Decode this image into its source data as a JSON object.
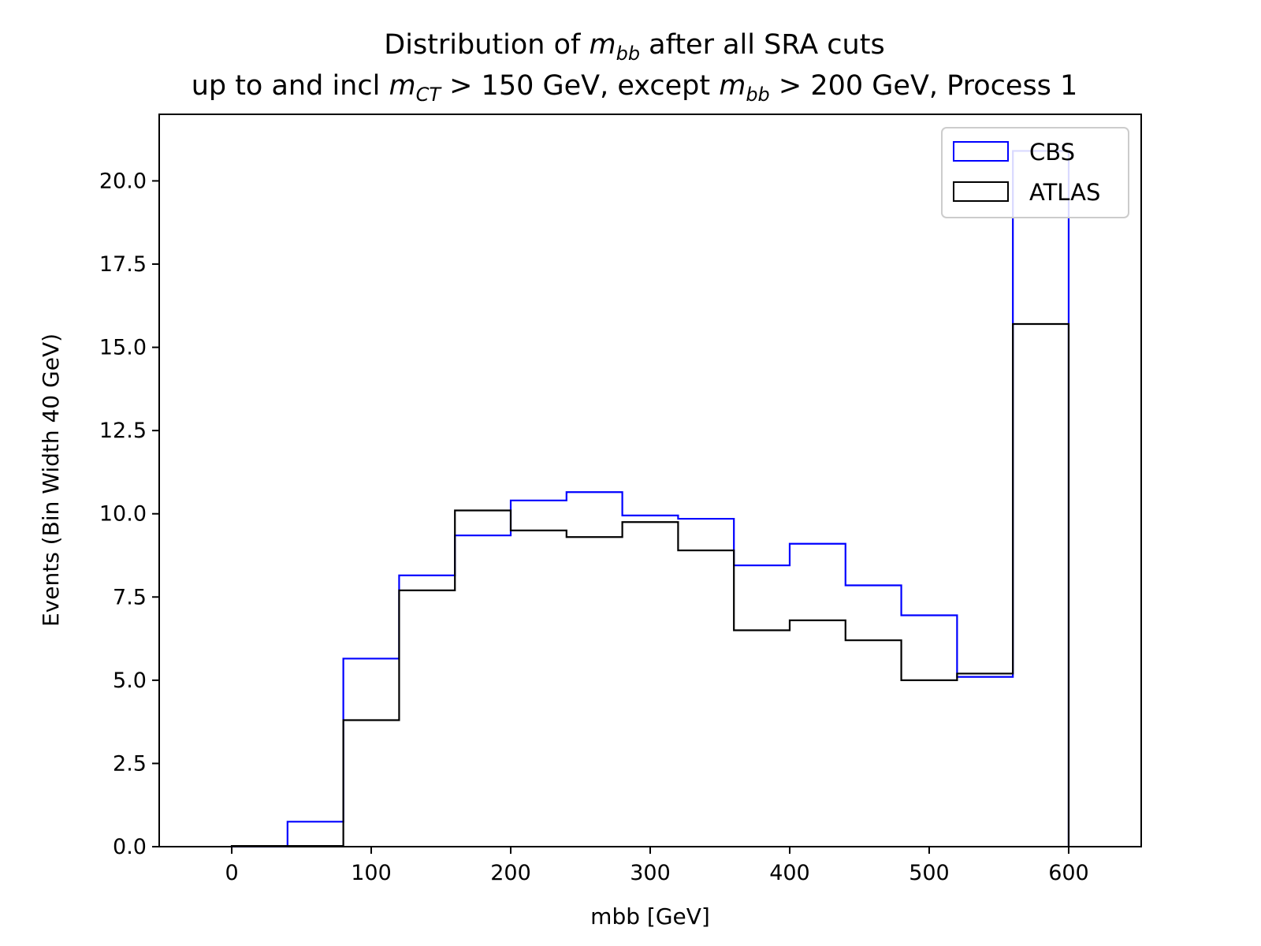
{
  "chart_data": {
    "type": "histogram",
    "title_line1": "Distribution of m_bb after all SRA cuts",
    "title_line2": "up to and incl m_CT > 150 GeV, except m_bb > 200 GeV, Process 1",
    "xlabel": "mbb [GeV]",
    "ylabel": "Events (Bin Width 40 GeV)",
    "xlim": [
      -52,
      652
    ],
    "ylim": [
      0,
      22
    ],
    "x_ticks": [
      0,
      100,
      200,
      300,
      400,
      500,
      600
    ],
    "y_ticks": [
      0.0,
      2.5,
      5.0,
      7.5,
      10.0,
      12.5,
      15.0,
      17.5,
      20.0
    ],
    "bin_edges": [
      0,
      40,
      80,
      120,
      160,
      200,
      240,
      280,
      320,
      360,
      400,
      440,
      480,
      520,
      560,
      600
    ],
    "legend_position": "upper right",
    "grid": false,
    "series": [
      {
        "name": "CBS",
        "color": "#0000ff",
        "values": [
          0.02,
          0.75,
          5.65,
          8.15,
          9.35,
          10.4,
          10.65,
          9.95,
          9.85,
          8.45,
          9.1,
          7.85,
          6.95,
          5.1,
          20.9
        ]
      },
      {
        "name": "ATLAS",
        "color": "#000000",
        "values": [
          0.02,
          0.02,
          3.8,
          7.7,
          10.1,
          9.5,
          9.3,
          9.75,
          8.9,
          6.5,
          6.8,
          6.2,
          5.0,
          5.2,
          15.7
        ]
      }
    ]
  }
}
